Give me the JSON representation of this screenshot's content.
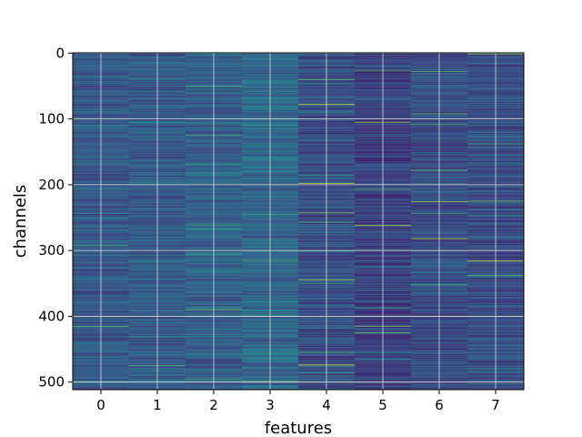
{
  "chart_data": {
    "type": "heatmap",
    "title": "",
    "xlabel": "features",
    "ylabel": "channels",
    "x_categories": [
      0,
      1,
      2,
      3,
      4,
      5,
      6,
      7
    ],
    "x_ticks": [
      "0",
      "1",
      "2",
      "3",
      "4",
      "5",
      "6",
      "7"
    ],
    "y_ticks": [
      "0",
      "100",
      "200",
      "300",
      "400",
      "500"
    ],
    "y_range": [
      0,
      512
    ],
    "grid": true,
    "colormap": "viridis",
    "colors": {
      "low": "#440154",
      "mid": "#31688e",
      "high": "#35b779",
      "peak": "#fde725",
      "grid": "#d9d9d9"
    },
    "column_baseline": [
      0.28,
      0.29,
      0.3,
      0.33,
      0.24,
      0.2,
      0.24,
      0.24
    ],
    "highlighted_cells": [
      {
        "feature": 0,
        "channel": 415,
        "value": 0.75
      },
      {
        "feature": 1,
        "channel": 475,
        "value": 0.7
      },
      {
        "feature": 2,
        "channel": 50,
        "value": 0.65
      },
      {
        "feature": 2,
        "channel": 390,
        "value": 0.8
      },
      {
        "feature": 2,
        "channel": 495,
        "value": 0.7
      },
      {
        "feature": 3,
        "channel": 245,
        "value": 0.6
      },
      {
        "feature": 3,
        "channel": 315,
        "value": 0.7
      },
      {
        "feature": 3,
        "channel": 400,
        "value": 0.85
      },
      {
        "feature": 3,
        "channel": 498,
        "value": 0.65
      },
      {
        "feature": 4,
        "channel": 40,
        "value": 0.75
      },
      {
        "feature": 4,
        "channel": 78,
        "value": 0.95
      },
      {
        "feature": 4,
        "channel": 198,
        "value": 0.9
      },
      {
        "feature": 4,
        "channel": 243,
        "value": 0.8
      },
      {
        "feature": 4,
        "channel": 257,
        "value": 0.65
      },
      {
        "feature": 4,
        "channel": 345,
        "value": 0.85
      },
      {
        "feature": 4,
        "channel": 474,
        "value": 0.95
      },
      {
        "feature": 4,
        "channel": 455,
        "value": 0.7
      },
      {
        "feature": 5,
        "channel": 27,
        "value": 0.75
      },
      {
        "feature": 5,
        "channel": 105,
        "value": 0.85
      },
      {
        "feature": 5,
        "channel": 207,
        "value": 0.7
      },
      {
        "feature": 5,
        "channel": 262,
        "value": 0.9
      },
      {
        "feature": 5,
        "channel": 415,
        "value": 0.8
      },
      {
        "feature": 5,
        "channel": 425,
        "value": 0.75
      },
      {
        "feature": 6,
        "channel": 28,
        "value": 0.7
      },
      {
        "feature": 6,
        "channel": 92,
        "value": 0.75
      },
      {
        "feature": 6,
        "channel": 108,
        "value": 0.7
      },
      {
        "feature": 6,
        "channel": 178,
        "value": 0.7
      },
      {
        "feature": 6,
        "channel": 226,
        "value": 0.85
      },
      {
        "feature": 6,
        "channel": 282,
        "value": 0.9
      },
      {
        "feature": 6,
        "channel": 352,
        "value": 0.65
      },
      {
        "feature": 7,
        "channel": 1,
        "value": 0.85
      },
      {
        "feature": 7,
        "channel": 138,
        "value": 0.65
      },
      {
        "feature": 7,
        "channel": 225,
        "value": 0.8
      },
      {
        "feature": 7,
        "channel": 316,
        "value": 0.95
      },
      {
        "feature": 7,
        "channel": 338,
        "value": 0.7
      }
    ]
  }
}
